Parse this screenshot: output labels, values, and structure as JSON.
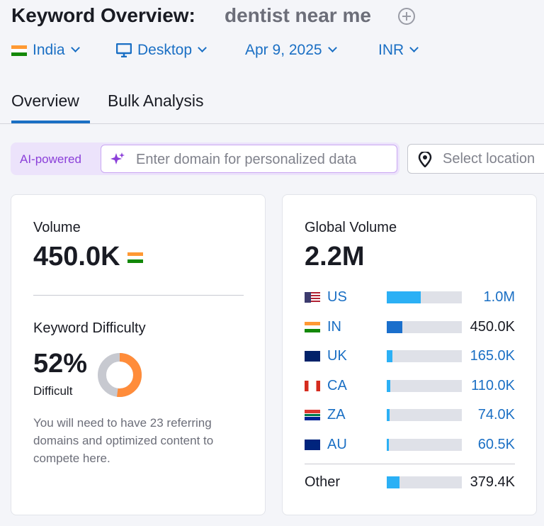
{
  "header": {
    "title": "Keyword Overview:",
    "keyword": "dentist near me"
  },
  "filters": {
    "country": "India",
    "device": "Desktop",
    "date": "Apr 9, 2025",
    "currency": "INR"
  },
  "tabs": [
    "Overview",
    "Bulk Analysis"
  ],
  "search": {
    "badge": "AI-powered",
    "placeholder": "Enter domain for personalized data",
    "location_placeholder": "Select location"
  },
  "volume": {
    "title": "Volume",
    "value": "450.0K"
  },
  "keyword_difficulty": {
    "title": "Keyword Difficulty",
    "value": 52,
    "value_label": "52%",
    "level": "Difficult",
    "description": "You will need to have 23 referring domains and optimized content to compete here."
  },
  "global_volume": {
    "title": "Global Volume",
    "value": 2200000,
    "value_label": "2.2M",
    "countries": [
      {
        "code": "US",
        "value": 1000000,
        "value_label": "1.0M"
      },
      {
        "code": "IN",
        "value": 450000,
        "value_label": "450.0K"
      },
      {
        "code": "UK",
        "value": 165000,
        "value_label": "165.0K"
      },
      {
        "code": "CA",
        "value": 110000,
        "value_label": "110.0K"
      },
      {
        "code": "ZA",
        "value": 74000,
        "value_label": "74.0K"
      },
      {
        "code": "AU",
        "value": 60500,
        "value_label": "60.5K"
      }
    ],
    "other": {
      "label": "Other",
      "value": 379400,
      "value_label": "379.4K"
    }
  }
}
